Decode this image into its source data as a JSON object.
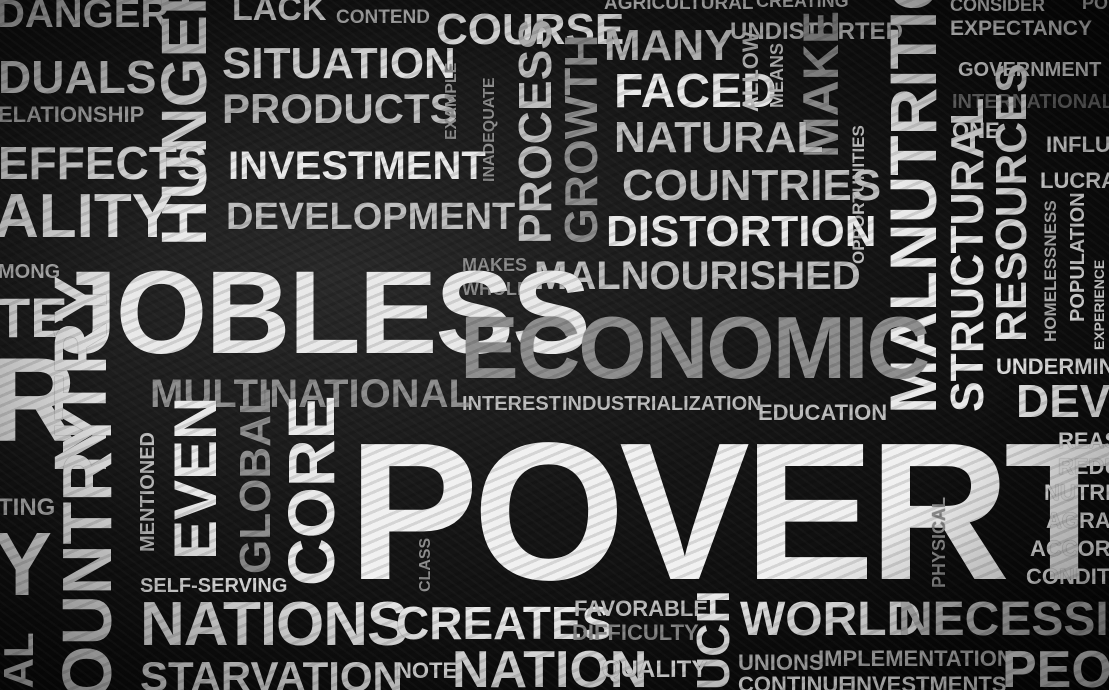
{
  "words": {
    "danger": "DANGER",
    "lack": "LACK",
    "contend": "CONTEND",
    "course": "COURSE",
    "agricultural": "AGRICULTURAL",
    "creating": "CREATING",
    "consider": "CONSIDER",
    "expectancy": "EXPECTANCY",
    "duals": "DUALS",
    "situation": "SITUATION",
    "many": "MANY",
    "undistorted": "UNDISTORTED",
    "government": "GOVERNMENT",
    "elationship": "ELATIONSHIP",
    "products": "PRODUCTS",
    "example": "EXAMPLE",
    "inadequate": "INADEQUATE",
    "process": "PROCESS",
    "growth": "GROWTH",
    "faced": "FACED",
    "allow": "ALLOW",
    "means": "MEANS",
    "make": "MAKE",
    "international": "INTERNATIONAL",
    "hunger": "HUNGER",
    "effects": "EFFECTS",
    "investment": "INVESTMENT",
    "natural": "NATURAL",
    "one": "ONE",
    "influe": "INFLUE",
    "malnutritio": "MALNUTRITIO",
    "opportunities": "OPPORTUNITIES",
    "countries": "COUNTRIES",
    "resources": "RESOURCES",
    "lucrat": "LUCRAT",
    "ality": "ALITY",
    "development": "DEVELOPMENT",
    "distortion": "DISTORTION",
    "structural": "STRUCTURAL",
    "homelessness": "HOMELESSNESS",
    "population": "POPULATION",
    "mong": "MONG",
    "makes": "MAKES",
    "whole": "WHOLE",
    "malnourished": "MALNOURISHED",
    "experience": "EXPERIENCE",
    "te": "TE",
    "jobless": "JOBLESS",
    "economic": "ECONOMIC",
    "undermine": "UNDERMINE",
    "multinational": "MULTINATIONAL",
    "interest": "INTEREST",
    "industrialization": "INDUSTRIALIZATION",
    "education": "EDUCATION",
    "deve": "DEVE",
    "r": "R",
    "ntry": "NTRY",
    "ountry": "OUNTRY",
    "mentioned": "MENTIONED",
    "even": "EVEN",
    "global": "GLOBAL",
    "core": "CORE",
    "poverty": "POVERTY",
    "physical": "PHYSICAL",
    "reas": "REAS",
    "redu": "REDU",
    "nutrit": "NUTRIT",
    "agrar": "AGRAR",
    "accord": "ACCORD",
    "conditi": "CONDITI",
    "ting": "TING",
    "y": "Y",
    "class": "CLASS",
    "self_serving": "SELF-SERVING",
    "ial": "IAL",
    "nations": "NATIONS",
    "creates": "CREATES",
    "favorable": "FAVORABLE",
    "difficulty": "DIFFICULTY",
    "uch": "UCH",
    "world": "WORLD",
    "necessiti": "NECESSITI",
    "starvation": "STARVATION",
    "note": "NOTE",
    "nation": "NATION",
    "quality": "QUALITY",
    "unions": "UNIONS",
    "implementation": "IMPLEMENTATION",
    "continue": "CONTINUE",
    "investments": "INVESTMENTS",
    "peop": "PEOP",
    "polit": "POLIT"
  }
}
